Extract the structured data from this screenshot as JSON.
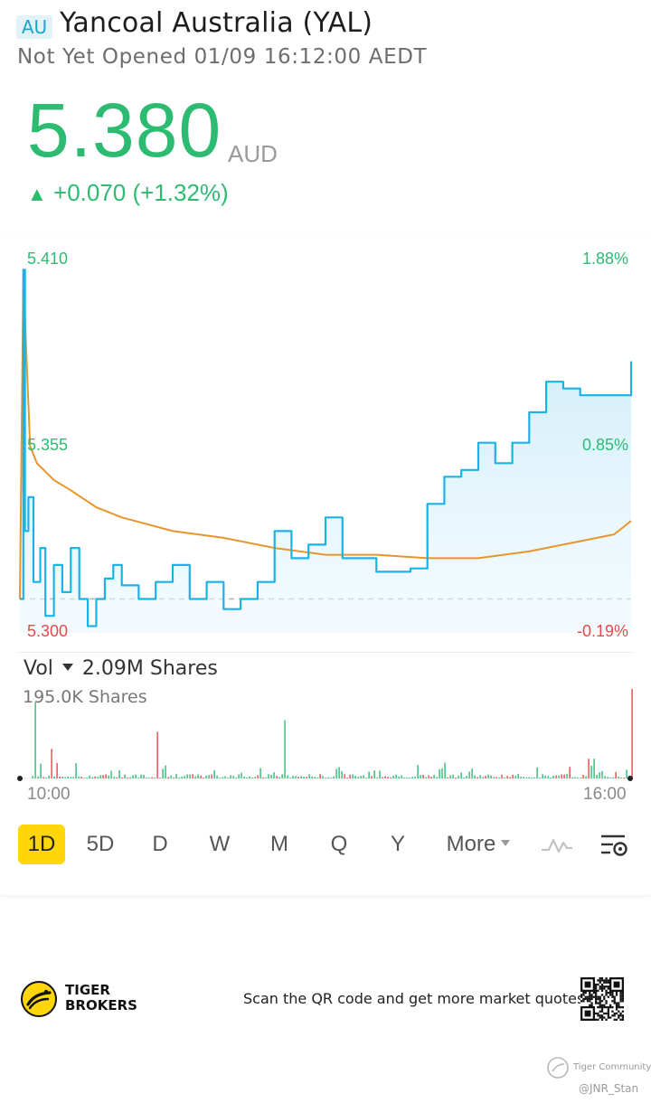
{
  "header": {
    "market_badge": "AU",
    "stock_name": "Yancoal Australia (YAL)",
    "status_line": "Not Yet Opened 01/09 16:12:00 AEDT"
  },
  "quote": {
    "price": "5.380",
    "currency": "AUD",
    "change_arrow": "▲",
    "change_text": "+0.070 (+1.32%)"
  },
  "colors": {
    "up": "#2dbb72",
    "down": "#e34b4b",
    "price_line": "#1ab3e6",
    "avg_line": "#e8952b",
    "period_active": "#ffd60a"
  },
  "chart_axes": {
    "y_top": "5.410",
    "y_mid": "5.355",
    "y_bottom": "5.300",
    "pct_top": "1.88%",
    "pct_mid": "0.85%",
    "pct_bottom": "-0.19%"
  },
  "volume": {
    "label": "Vol",
    "total": "2.09M Shares",
    "max_label": "195.0K Shares"
  },
  "time_axis": {
    "start": "10:00",
    "end": "16:00"
  },
  "periods": [
    "1D",
    "5D",
    "D",
    "W",
    "M",
    "Q",
    "Y",
    "More"
  ],
  "active_period": "1D",
  "icons": [
    "indicator-icon",
    "chart-settings-icon"
  ],
  "footer": {
    "brand_line1": "TIGER",
    "brand_line2": "BROKERS",
    "qr_text": "Scan the QR code and get more market quotes"
  },
  "watermark": {
    "community": "Tiger Community",
    "user": "@JNR_Stan"
  },
  "chart_data": {
    "type": "line",
    "x_range": [
      "10:00",
      "16:00"
    ],
    "ylim": [
      5.3,
      5.41
    ],
    "prev_close": 5.31,
    "series": [
      {
        "x": [
          "10:00",
          "10:02",
          "10:03",
          "10:05",
          "10:08",
          "10:12",
          "10:15",
          "10:20",
          "10:25",
          "10:30",
          "10:35",
          "10:40",
          "10:45",
          "10:50",
          "10:55",
          "11:00",
          "11:10",
          "11:20",
          "11:30",
          "11:40",
          "11:50",
          "12:00",
          "12:10",
          "12:20",
          "12:30",
          "12:40",
          "12:50",
          "13:00",
          "13:10",
          "13:20",
          "13:30",
          "13:40",
          "13:50",
          "14:00",
          "14:10",
          "14:20",
          "14:30",
          "14:40",
          "14:50",
          "15:00",
          "15:10",
          "15:20",
          "15:30",
          "15:40",
          "15:50",
          "16:00"
        ],
        "values": [
          5.31,
          5.407,
          5.33,
          5.34,
          5.315,
          5.325,
          5.305,
          5.32,
          5.312,
          5.325,
          5.31,
          5.302,
          5.31,
          5.316,
          5.32,
          5.314,
          5.31,
          5.315,
          5.32,
          5.31,
          5.315,
          5.307,
          5.31,
          5.315,
          5.33,
          5.322,
          5.326,
          5.334,
          5.322,
          5.322,
          5.318,
          5.318,
          5.319,
          5.338,
          5.346,
          5.348,
          5.356,
          5.35,
          5.356,
          5.365,
          5.374,
          5.372,
          5.37,
          5.37,
          5.37,
          5.38
        ]
      },
      {
        "x": [
          "10:00",
          "10:02",
          "10:04",
          "10:06",
          "10:10",
          "10:20",
          "10:30",
          "10:45",
          "11:00",
          "11:30",
          "12:00",
          "12:30",
          "13:00",
          "13:30",
          "14:00",
          "14:30",
          "15:00",
          "15:30",
          "15:50",
          "16:00"
        ],
        "values": [
          5.31,
          5.405,
          5.38,
          5.355,
          5.35,
          5.345,
          5.342,
          5.337,
          5.334,
          5.33,
          5.328,
          5.325,
          5.323,
          5.323,
          5.322,
          5.322,
          5.324,
          5.327,
          5.329,
          5.333
        ]
      }
    ],
    "volume_max": 195000
  }
}
